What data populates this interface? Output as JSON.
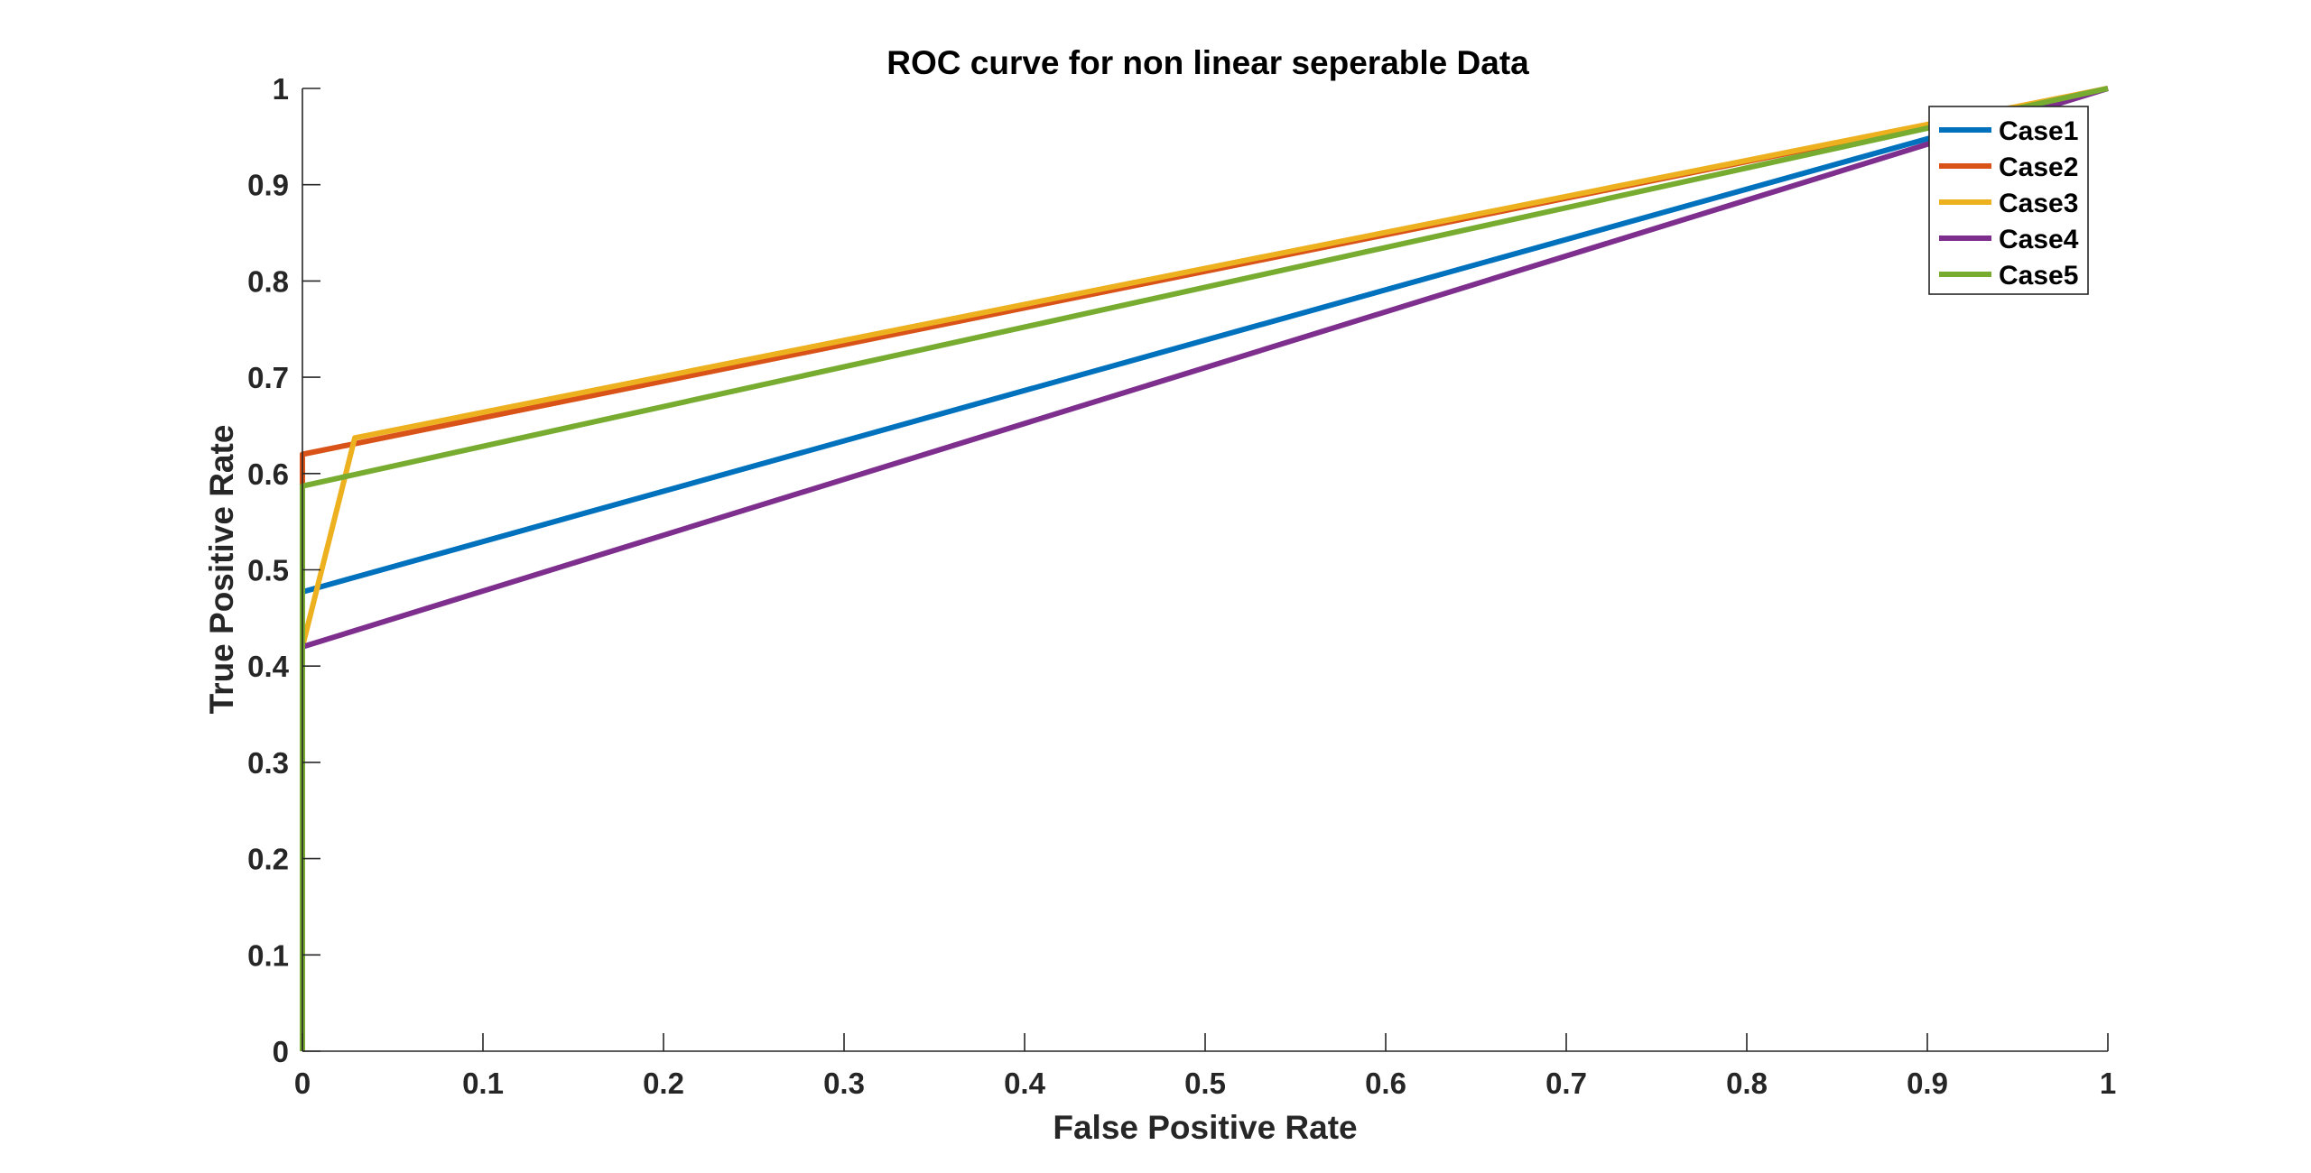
{
  "chart_data": {
    "type": "line",
    "title": "ROC curve for non linear seperable Data",
    "xlabel": "False Positive Rate",
    "ylabel": "True Positive Rate",
    "xlim": [
      0,
      1
    ],
    "ylim": [
      0,
      1
    ],
    "xticks": [
      "0",
      "0.1",
      "0.2",
      "0.3",
      "0.4",
      "0.5",
      "0.6",
      "0.7",
      "0.8",
      "0.9",
      "1"
    ],
    "yticks": [
      "0",
      "0.1",
      "0.2",
      "0.3",
      "0.4",
      "0.5",
      "0.6",
      "0.7",
      "0.8",
      "0.9",
      "1"
    ],
    "grid": false,
    "legend_position": "top-right",
    "series": [
      {
        "name": "Case1",
        "color": "#0072BD",
        "x": [
          0,
          0,
          1
        ],
        "y": [
          0,
          0.477,
          1
        ]
      },
      {
        "name": "Case2",
        "color": "#D95319",
        "x": [
          0,
          0,
          1
        ],
        "y": [
          0,
          0.62,
          1
        ]
      },
      {
        "name": "Case3",
        "color": "#EDB120",
        "x": [
          0,
          0,
          0.029,
          1
        ],
        "y": [
          0,
          0.42,
          0.637,
          1
        ]
      },
      {
        "name": "Case4",
        "color": "#7E2F8E",
        "x": [
          0,
          0,
          1
        ],
        "y": [
          0,
          0.42,
          1
        ]
      },
      {
        "name": "Case5",
        "color": "#77AC30",
        "x": [
          0,
          0,
          1
        ],
        "y": [
          0,
          0.587,
          1
        ]
      }
    ]
  }
}
